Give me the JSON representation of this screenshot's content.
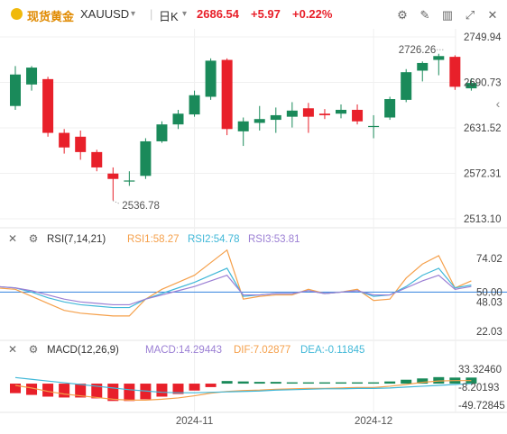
{
  "header": {
    "name": "现货黄金",
    "symbol": "XAUUSD",
    "period": "日K",
    "price": "2686.54",
    "change": "+5.97",
    "change_pct": "+0.22%"
  },
  "colors": {
    "up": "#1a8a5a",
    "down": "#e8202a",
    "rsi1": "#f5a04b",
    "rsi2": "#41b8d8",
    "rsi3": "#9b7fd4",
    "macd": "#9b7fd4",
    "dif": "#f5a04b",
    "dea": "#41b8d8",
    "ref_line": "#4a90e2"
  },
  "chart_data": [
    {
      "type": "candlestick",
      "y_ticks": [
        "2749.94",
        "2690.73",
        "2631.52",
        "2572.31",
        "2513.10"
      ],
      "ylim": [
        2513.1,
        2749.94
      ],
      "candles": [
        {
          "o": 2660,
          "h": 2712,
          "l": 2655,
          "c": 2701
        },
        {
          "o": 2688,
          "h": 2712,
          "l": 2680,
          "c": 2710
        },
        {
          "o": 2695,
          "h": 2698,
          "l": 2620,
          "c": 2625
        },
        {
          "o": 2625,
          "h": 2630,
          "l": 2598,
          "c": 2606
        },
        {
          "o": 2620,
          "h": 2628,
          "l": 2590,
          "c": 2600
        },
        {
          "o": 2600,
          "h": 2603,
          "l": 2575,
          "c": 2580
        },
        {
          "o": 2572,
          "h": 2580,
          "l": 2537,
          "c": 2565
        },
        {
          "o": 2562,
          "h": 2575,
          "l": 2556,
          "c": 2563
        },
        {
          "o": 2569,
          "h": 2618,
          "l": 2565,
          "c": 2614
        },
        {
          "o": 2614,
          "h": 2640,
          "l": 2612,
          "c": 2636
        },
        {
          "o": 2636,
          "h": 2655,
          "l": 2630,
          "c": 2650
        },
        {
          "o": 2649,
          "h": 2680,
          "l": 2646,
          "c": 2674
        },
        {
          "o": 2672,
          "h": 2722,
          "l": 2668,
          "c": 2719
        },
        {
          "o": 2720,
          "h": 2722,
          "l": 2622,
          "c": 2630
        },
        {
          "o": 2627,
          "h": 2645,
          "l": 2608,
          "c": 2640
        },
        {
          "o": 2638,
          "h": 2660,
          "l": 2628,
          "c": 2643
        },
        {
          "o": 2642,
          "h": 2658,
          "l": 2625,
          "c": 2648
        },
        {
          "o": 2646,
          "h": 2665,
          "l": 2632,
          "c": 2654
        },
        {
          "o": 2657,
          "h": 2664,
          "l": 2625,
          "c": 2646
        },
        {
          "o": 2650,
          "h": 2656,
          "l": 2643,
          "c": 2648
        },
        {
          "o": 2650,
          "h": 2662,
          "l": 2644,
          "c": 2655
        },
        {
          "o": 2655,
          "h": 2662,
          "l": 2636,
          "c": 2640
        },
        {
          "o": 2634,
          "h": 2648,
          "l": 2618,
          "c": 2634
        },
        {
          "o": 2645,
          "h": 2672,
          "l": 2642,
          "c": 2669
        },
        {
          "o": 2668,
          "h": 2708,
          "l": 2665,
          "c": 2704
        },
        {
          "o": 2706,
          "h": 2718,
          "l": 2692,
          "c": 2716
        },
        {
          "o": 2720,
          "h": 2728,
          "l": 2700,
          "c": 2725
        },
        {
          "o": 2724,
          "h": 2726,
          "l": 2681,
          "c": 2685
        },
        {
          "o": 2683,
          "h": 2696,
          "l": 2680,
          "c": 2690
        }
      ],
      "annotations": [
        {
          "text": "2726.26",
          "value": 2726.26,
          "candle": 26
        },
        {
          "text": "2536.78",
          "value": 2536.78,
          "candle": 6
        }
      ]
    },
    {
      "type": "line",
      "title": "RSI(7,14,21)",
      "legend": [
        {
          "label": "RSI1:58.27"
        },
        {
          "label": "RSI2:54.78"
        },
        {
          "label": "RSI3:53.81"
        }
      ],
      "y_ticks": [
        "74.02",
        "50.00",
        "48.03",
        "22.03"
      ],
      "ylim": [
        22.03,
        74.02
      ],
      "reference": 50.0,
      "series": [
        {
          "values": [
            52,
            47,
            42,
            37,
            35,
            34,
            33,
            33,
            45,
            52,
            57,
            62,
            71,
            80,
            45,
            47,
            48,
            48,
            52,
            49,
            50,
            52,
            44,
            45,
            60,
            70,
            76,
            53,
            58
          ]
        },
        {
          "values": [
            53,
            50,
            46,
            43,
            41,
            40,
            39,
            39,
            45,
            49,
            53,
            57,
            62,
            67,
            47,
            48,
            49,
            49,
            51,
            49,
            50,
            51,
            47,
            48,
            54,
            62,
            67,
            53,
            55
          ]
        },
        {
          "values": [
            53,
            51,
            48,
            45,
            43,
            42,
            41,
            41,
            45,
            48,
            51,
            54,
            58,
            62,
            48,
            48,
            49,
            49,
            51,
            49,
            50,
            51,
            48,
            48,
            53,
            58,
            62,
            52,
            54
          ]
        }
      ]
    },
    {
      "type": "bar+line",
      "title": "MACD(12,26,9)",
      "legend": [
        {
          "label": "MACD:14.29443"
        },
        {
          "label": "DIF:7.02877"
        },
        {
          "label": "DEA:-0.11845"
        }
      ],
      "y_ticks": [
        "33.32460",
        "-8.20193",
        "-49.72845"
      ],
      "ylim": [
        -49.72845,
        33.3246
      ],
      "x_ticks": [
        {
          "label": "2024-11",
          "candle": 11
        },
        {
          "label": "2024-12",
          "candle": 22
        }
      ],
      "histogram": [
        -22,
        -26,
        -30,
        -32,
        -32,
        -34,
        -40,
        -40,
        -36,
        -30,
        -24,
        -16,
        -8,
        6,
        5,
        4,
        4,
        3,
        3,
        3,
        3,
        3,
        3,
        5,
        9,
        12,
        15,
        14,
        14
      ],
      "dif": [
        -4,
        -10,
        -18,
        -24,
        -28,
        -32,
        -36,
        -38,
        -38,
        -36,
        -33,
        -28,
        -22,
        -18,
        -16,
        -15,
        -13,
        -12,
        -11,
        -11,
        -10,
        -9,
        -9,
        -6,
        -2,
        3,
        6,
        7,
        7
      ],
      "dea": [
        14,
        10,
        6,
        2,
        -2,
        -6,
        -10,
        -14,
        -17,
        -20,
        -21,
        -21,
        -20,
        -19,
        -18,
        -17,
        -15,
        -14,
        -13,
        -12,
        -12,
        -11,
        -11,
        -10,
        -8,
        -6,
        -4,
        -2,
        0
      ]
    }
  ]
}
